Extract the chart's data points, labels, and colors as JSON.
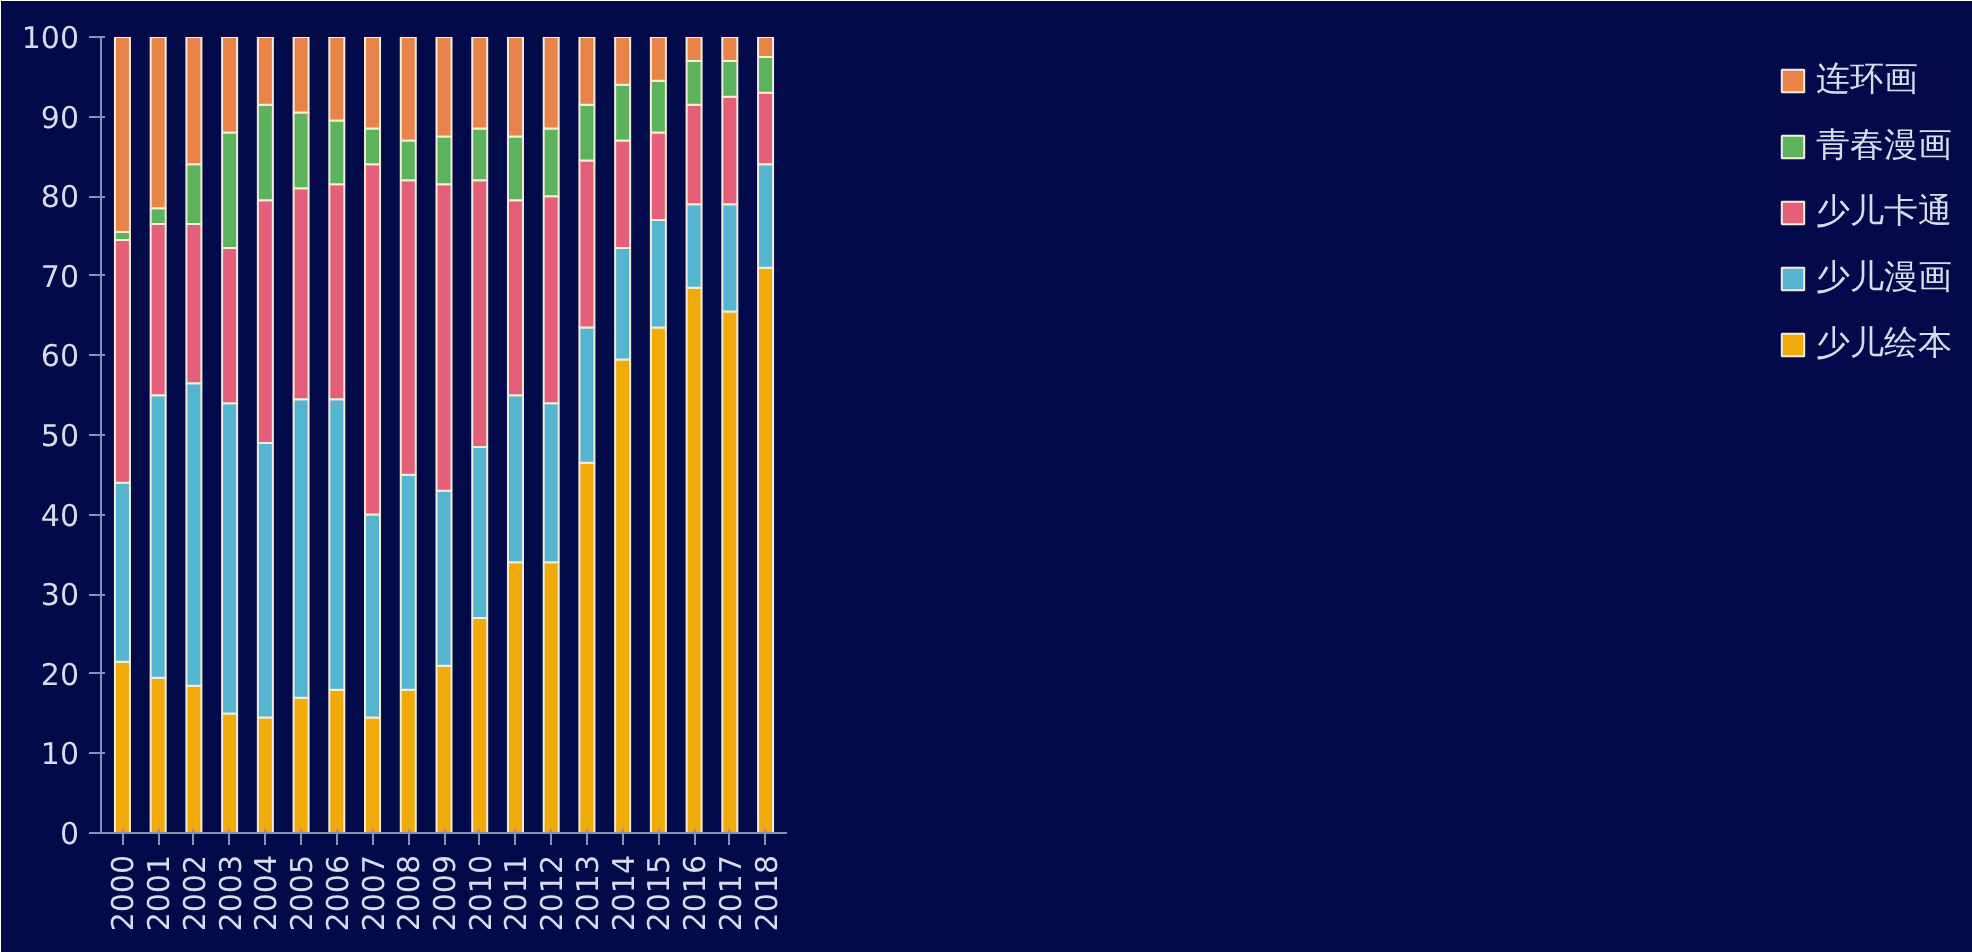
{
  "chart_data": {
    "type": "bar",
    "stacked": true,
    "categories": [
      "2000",
      "2001",
      "2002",
      "2003",
      "2004",
      "2005",
      "2006",
      "2007",
      "2008",
      "2009",
      "2010",
      "2011",
      "2012",
      "2013",
      "2014",
      "2015",
      "2016",
      "2017",
      "2018"
    ],
    "series": [
      {
        "name": "少儿绘本",
        "color": "#f0aa0a",
        "values": [
          21.5,
          19.5,
          18.5,
          15,
          14.5,
          17,
          18,
          14.5,
          18,
          21,
          27,
          34,
          34,
          46.5,
          59.5,
          63.5,
          68.5,
          65.5,
          71
        ]
      },
      {
        "name": "少儿漫画",
        "color": "#55b4cf",
        "values": [
          22.5,
          35.5,
          38,
          39,
          34.5,
          37.5,
          36.5,
          25.5,
          27,
          22,
          21.5,
          21,
          20,
          17,
          14,
          13.5,
          10.5,
          13.5,
          13
        ]
      },
      {
        "name": "少儿卡通",
        "color": "#e4607a",
        "values": [
          30.5,
          21.5,
          20,
          19.5,
          30.5,
          26.5,
          27,
          44,
          37,
          38.5,
          33.5,
          24.5,
          26,
          21,
          13.5,
          11,
          12.5,
          13.5,
          9
        ]
      },
      {
        "name": "青春漫画",
        "color": "#5cb25d",
        "values": [
          1,
          2,
          7.5,
          14.5,
          12,
          9.5,
          8,
          4.5,
          5,
          6,
          6.5,
          8,
          8.5,
          7,
          7,
          6.5,
          5.5,
          4.5,
          4.5
        ]
      },
      {
        "name": "连环画",
        "color": "#e8834a",
        "values": [
          24.5,
          21.5,
          16,
          12,
          8.5,
          9.5,
          10.5,
          11.5,
          13,
          12.5,
          11.5,
          12.5,
          11.5,
          8.5,
          6,
          5.5,
          3,
          3,
          2.5
        ]
      }
    ],
    "ylim": [
      0,
      100
    ],
    "yticks": [
      0,
      10,
      20,
      30,
      40,
      50,
      60,
      70,
      80,
      90,
      100
    ],
    "grid": false,
    "legend": "right"
  }
}
